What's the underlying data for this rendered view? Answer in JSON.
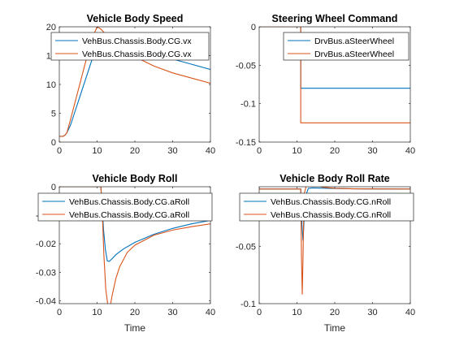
{
  "colors": {
    "series1": "#0072BD",
    "series2": "#D95319"
  },
  "chart_data": [
    {
      "type": "line",
      "title": "Vehicle Body Speed",
      "xlabel": "",
      "ylabel": "",
      "xlim": [
        0,
        40
      ],
      "ylim": [
        0,
        20
      ],
      "xticks": [
        0,
        10,
        20,
        30,
        40
      ],
      "yticks": [
        0,
        5,
        10,
        15,
        20
      ],
      "xtick_labels": [
        "0",
        "10",
        "20",
        "30",
        "40"
      ],
      "ytick_labels": [
        "0",
        "5",
        "10",
        "15",
        "20"
      ],
      "legend": "top-right",
      "series": [
        {
          "name": "VehBus.Chassis.Body.CG.vx",
          "x": [
            0,
            1,
            1.5,
            2,
            3,
            4,
            5,
            6,
            7,
            8,
            9,
            10,
            11,
            12,
            15,
            20,
            25,
            30,
            35,
            40
          ],
          "y": [
            1,
            1,
            1.2,
            1.6,
            3,
            5,
            7,
            9,
            11,
            13,
            15,
            17,
            18.3,
            18.5,
            17.7,
            16.5,
            15.4,
            14.4,
            13.5,
            12.6
          ]
        },
        {
          "name": "VehBus.Chassis.Body.CG.vx",
          "x": [
            0,
            1,
            1.5,
            2,
            3,
            4,
            5,
            6,
            7,
            8,
            9,
            10,
            11,
            12,
            15,
            20,
            25,
            30,
            35,
            40
          ],
          "y": [
            1,
            1,
            1.2,
            1.6,
            4,
            6.5,
            9,
            11.5,
            14,
            16.5,
            18.5,
            20,
            19.6,
            18.9,
            17.0,
            14.8,
            13.2,
            12.0,
            11.1,
            10.2
          ]
        }
      ]
    },
    {
      "type": "line",
      "title": "Steering Wheel Command",
      "xlabel": "",
      "ylabel": "",
      "xlim": [
        0,
        40
      ],
      "ylim": [
        -0.15,
        0
      ],
      "xticks": [
        0,
        10,
        20,
        30,
        40
      ],
      "yticks": [
        -0.15,
        -0.1,
        -0.05,
        0
      ],
      "xtick_labels": [
        "0",
        "10",
        "20",
        "30",
        "40"
      ],
      "ytick_labels": [
        "-0.15",
        "-0.1",
        "-0.05",
        "0"
      ],
      "legend": "top-right",
      "series": [
        {
          "name": "DrvBus.aSteerWheel",
          "x": [
            0,
            11,
            11,
            40
          ],
          "y": [
            0,
            0,
            -0.08,
            -0.08
          ]
        },
        {
          "name": "DrvBus.aSteerWheel",
          "x": [
            0,
            11,
            11,
            40
          ],
          "y": [
            0,
            0,
            -0.125,
            -0.125
          ]
        }
      ]
    },
    {
      "type": "line",
      "title": "Vehicle Body Roll",
      "xlabel": "Time",
      "ylabel": "",
      "xlim": [
        0,
        40
      ],
      "ylim": [
        -0.041,
        0
      ],
      "xticks": [
        0,
        10,
        20,
        30,
        40
      ],
      "yticks": [
        -0.04,
        -0.03,
        -0.02,
        -0.01,
        0
      ],
      "xtick_labels": [
        "0",
        "10",
        "20",
        "30",
        "40"
      ],
      "ytick_labels": [
        "-0.04",
        "-0.03",
        "-0.02",
        "-0.01",
        "0"
      ],
      "legend": "top-left",
      "series": [
        {
          "name": "VehBus.Chassis.Body.CG.aRoll",
          "x": [
            0,
            11,
            11.3,
            11.7,
            12.2,
            12.7,
            13.2,
            14,
            15,
            17,
            20,
            25,
            30,
            35,
            40
          ],
          "y": [
            0,
            0,
            -0.006,
            -0.015,
            -0.022,
            -0.026,
            -0.0262,
            -0.0252,
            -0.0238,
            -0.0218,
            -0.0195,
            -0.0167,
            -0.0146,
            -0.013,
            -0.0118
          ]
        },
        {
          "name": "VehBus.Chassis.Body.CG.aRoll",
          "x": [
            0,
            11,
            11.4,
            11.8,
            12.3,
            12.8,
            13.2,
            13.6,
            14,
            15,
            16,
            18,
            20,
            25,
            30,
            35,
            40
          ],
          "y": [
            0,
            0,
            -0.01,
            -0.024,
            -0.036,
            -0.041,
            -0.042,
            -0.041,
            -0.038,
            -0.032,
            -0.028,
            -0.023,
            -0.0205,
            -0.017,
            -0.0152,
            -0.014,
            -0.013
          ]
        }
      ]
    },
    {
      "type": "line",
      "title": "Vehicle Body Roll Rate",
      "xlabel": "Time",
      "ylabel": "",
      "xlim": [
        0,
        40
      ],
      "ylim": [
        -0.1,
        0.002
      ],
      "xticks": [
        0,
        10,
        20,
        30,
        40
      ],
      "yticks": [
        -0.1,
        -0.05
      ],
      "xtick_labels": [
        "0",
        "10",
        "20",
        "30",
        "40"
      ],
      "ytick_labels": [
        "-0.1",
        "-0.05"
      ],
      "legend": "top-left",
      "series": [
        {
          "name": "VehBus.Chassis.Body.CG.nRoll",
          "x": [
            0,
            11,
            11.3,
            11.6,
            12,
            12.4,
            13,
            14,
            16,
            20,
            25,
            30,
            40
          ],
          "y": [
            0,
            0,
            -0.03,
            -0.045,
            -0.02,
            -0.005,
            0.0005,
            0.001,
            0.0008,
            0.0004,
            0.0002,
            0.0001,
            0
          ]
        },
        {
          "name": "VehBus.Chassis.Body.CG.nRoll",
          "x": [
            0,
            11,
            11.2,
            11.4,
            11.6,
            11.8,
            12,
            12.4,
            13,
            14,
            15,
            17,
            20,
            25,
            30,
            40
          ],
          "y": [
            0,
            0,
            -0.06,
            -0.092,
            -0.06,
            -0.02,
            -0.003,
            0.002,
            0.004,
            0.004,
            0.003,
            0.0015,
            0.0006,
            0.0002,
            0.0001,
            0
          ]
        }
      ]
    }
  ]
}
